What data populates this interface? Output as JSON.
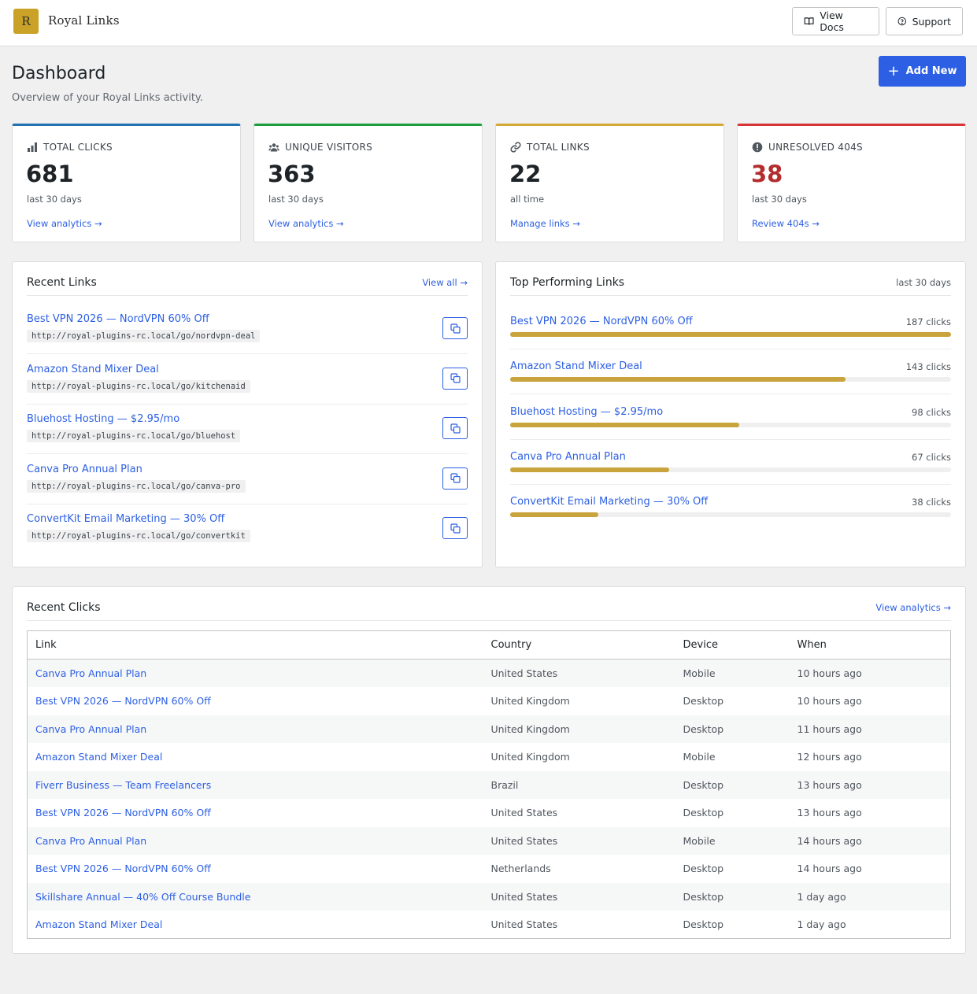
{
  "app": {
    "logo_letter": "R",
    "name": "Royal Links"
  },
  "header_buttons": {
    "docs": "View Docs",
    "support": "Support"
  },
  "page": {
    "title": "Dashboard",
    "subtitle": "Overview of your Royal Links activity.",
    "add_new": "Add New"
  },
  "stats": [
    {
      "label": "TOTAL CLICKS",
      "value": "681",
      "period": "last 30 days",
      "link": "View analytics →",
      "accent": "#2271b1",
      "value_color": "#1d2327",
      "icon": "bar-chart-icon"
    },
    {
      "label": "UNIQUE VISITORS",
      "value": "363",
      "period": "last 30 days",
      "link": "View analytics →",
      "accent": "#1f9d3a",
      "value_color": "#1d2327",
      "icon": "users-icon"
    },
    {
      "label": "TOTAL LINKS",
      "value": "22",
      "period": "all time",
      "link": "Manage links →",
      "accent": "#d4a937",
      "value_color": "#1d2327",
      "icon": "link-icon"
    },
    {
      "label": "UNRESOLVED 404S",
      "value": "38",
      "period": "last 30 days",
      "link": "Review 404s →",
      "accent": "#d63638",
      "value_color": "#b32d2e",
      "icon": "alert-icon"
    }
  ],
  "recent_links": {
    "title": "Recent Links",
    "view_all": "View all →",
    "items": [
      {
        "name": "Best VPN 2026 — NordVPN 60% Off",
        "url": "http://royal-plugins-rc.local/go/nordvpn-deal"
      },
      {
        "name": "Amazon Stand Mixer Deal",
        "url": "http://royal-plugins-rc.local/go/kitchenaid"
      },
      {
        "name": "Bluehost Hosting — $2.95/mo",
        "url": "http://royal-plugins-rc.local/go/bluehost"
      },
      {
        "name": "Canva Pro Annual Plan",
        "url": "http://royal-plugins-rc.local/go/canva-pro"
      },
      {
        "name": "ConvertKit Email Marketing — 30% Off",
        "url": "http://royal-plugins-rc.local/go/convertkit"
      }
    ]
  },
  "top_links": {
    "title": "Top Performing Links",
    "period": "last 30 days",
    "items": [
      {
        "name": "Best VPN 2026 — NordVPN 60% Off",
        "clicks": "187 clicks",
        "share": 1.0
      },
      {
        "name": "Amazon Stand Mixer Deal",
        "clicks": "143 clicks",
        "share": 0.76
      },
      {
        "name": "Bluehost Hosting — $2.95/mo",
        "clicks": "98 clicks",
        "share": 0.52
      },
      {
        "name": "Canva Pro Annual Plan",
        "clicks": "67 clicks",
        "share": 0.36
      },
      {
        "name": "ConvertKit Email Marketing — 30% Off",
        "clicks": "38 clicks",
        "share": 0.2
      }
    ]
  },
  "recent_clicks": {
    "title": "Recent Clicks",
    "view_analytics": "View analytics →",
    "columns": [
      "Link",
      "Country",
      "Device",
      "When"
    ],
    "rows": [
      [
        "Canva Pro Annual Plan",
        "United States",
        "Mobile",
        "10 hours ago"
      ],
      [
        "Best VPN 2026 — NordVPN 60% Off",
        "United Kingdom",
        "Desktop",
        "10 hours ago"
      ],
      [
        "Canva Pro Annual Plan",
        "United Kingdom",
        "Desktop",
        "11 hours ago"
      ],
      [
        "Amazon Stand Mixer Deal",
        "United Kingdom",
        "Mobile",
        "12 hours ago"
      ],
      [
        "Fiverr Business — Team Freelancers",
        "Brazil",
        "Desktop",
        "13 hours ago"
      ],
      [
        "Best VPN 2026 — NordVPN 60% Off",
        "United States",
        "Desktop",
        "13 hours ago"
      ],
      [
        "Canva Pro Annual Plan",
        "United States",
        "Mobile",
        "14 hours ago"
      ],
      [
        "Best VPN 2026 — NordVPN 60% Off",
        "Netherlands",
        "Desktop",
        "14 hours ago"
      ],
      [
        "Skillshare Annual — 40% Off Course Bundle",
        "United States",
        "Desktop",
        "1 day ago"
      ],
      [
        "Amazon Stand Mixer Deal",
        "United States",
        "Desktop",
        "1 day ago"
      ]
    ]
  }
}
